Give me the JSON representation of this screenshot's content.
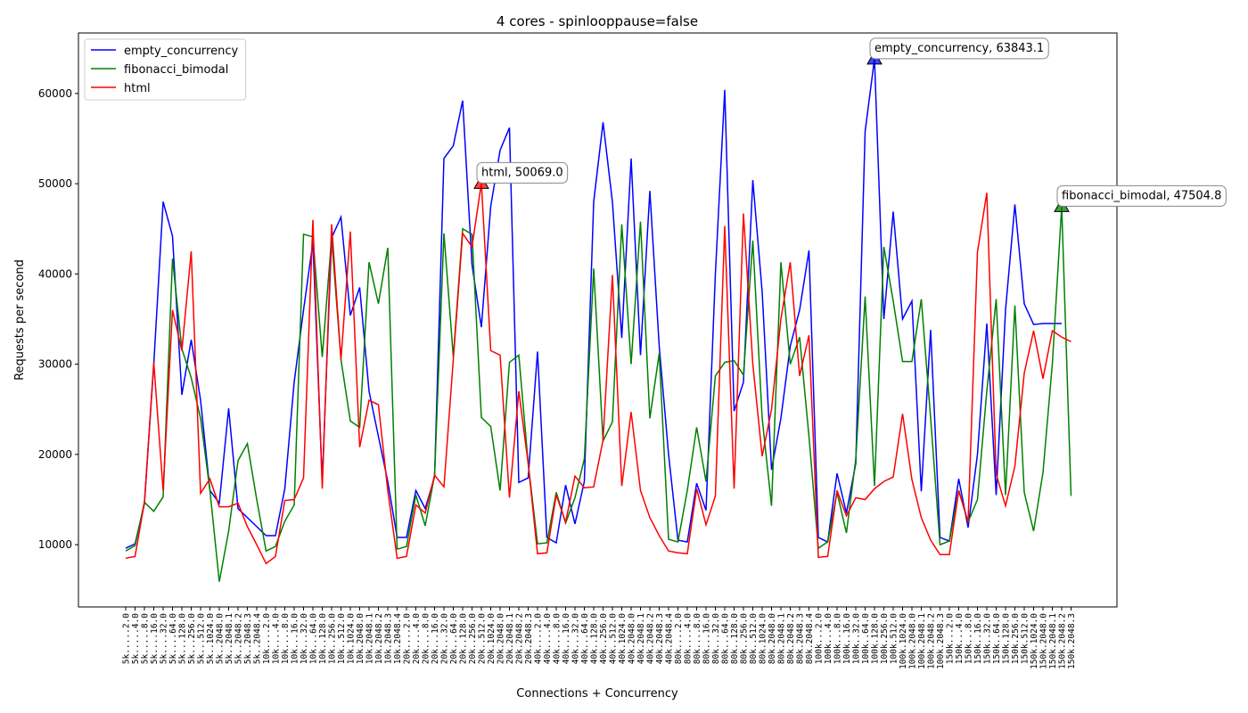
{
  "chart_data": {
    "type": "line",
    "title": "4 cores - spinlooppause=false",
    "x_label": "Connections + Concurrency",
    "y_label": "Requests per second",
    "legend": "upper left",
    "grid": false,
    "ylim": [
      3100,
      66700
    ],
    "yticks": [
      10000,
      20000,
      30000,
      40000,
      50000,
      60000
    ],
    "categories": [
      "5k.....2.0",
      "5k.....4.0",
      "5k.....8.0",
      "5k....16.0",
      "5k....32.0",
      "5k....64.0",
      "5k...128.0",
      "5k...256.0",
      "5k...512.0",
      "5k..1024.0",
      "5k..2048.0",
      "5k..2048.1",
      "5k..2048.2",
      "5k..2048.3",
      "5k..2048.4",
      "10k....2.0",
      "10k....4.0",
      "10k....8.0",
      "10k...16.0",
      "10k...32.0",
      "10k...64.0",
      "10k..128.0",
      "10k..256.0",
      "10k..512.0",
      "10k.1024.0",
      "10k.2048.0",
      "10k.2048.1",
      "10k.2048.2",
      "10k.2048.3",
      "10k.2048.4",
      "20k....2.0",
      "20k....4.0",
      "20k....8.0",
      "20k...16.0",
      "20k...32.0",
      "20k...64.0",
      "20k..128.0",
      "20k..256.0",
      "20k..512.0",
      "20k.1024.0",
      "20k.2048.0",
      "20k.2048.1",
      "20k.2048.2",
      "20k.2048.3",
      "40k....2.0",
      "40k....4.0",
      "40k....8.0",
      "40k...16.0",
      "40k...32.0",
      "40k...64.0",
      "40k..128.0",
      "40k..256.0",
      "40k..512.0",
      "40k.1024.0",
      "40k.2048.0",
      "40k.2048.1",
      "40k.2048.2",
      "40k.2048.3",
      "40k.2048.4",
      "80k....2.0",
      "80k....4.0",
      "80k....8.0",
      "80k...16.0",
      "80k...32.0",
      "80k...64.0",
      "80k..128.0",
      "80k..256.0",
      "80k..512.0",
      "80k.1024.0",
      "80k.2048.0",
      "80k.2048.1",
      "80k.2048.2",
      "80k.2048.3",
      "80k.2048.4",
      "100k...2.0",
      "100k...4.0",
      "100k...8.0",
      "100k..16.0",
      "100k..32.0",
      "100k..64.0",
      "100k.128.0",
      "100k.256.0",
      "100k.512.0",
      "100k.1024.0",
      "100k.2048.0",
      "100k.2048.1",
      "100k.2048.2",
      "100k.2048.3",
      "150k...2.0",
      "150k...4.0",
      "150k...8.0",
      "150k..16.0",
      "150k..32.0",
      "150k..64.0",
      "150k.128.0",
      "150k.256.0",
      "150k.512.0",
      "150k.1024.0",
      "150k.2048.0",
      "150k.2048.1",
      "150k.2048.2",
      "150k.2048.3"
    ],
    "series": [
      {
        "name": "empty_concurrency",
        "color": "#0000ff",
        "annotation": "empty_concurrency, 63843.1",
        "values": [
          9600,
          10100,
          14500,
          30000,
          48000,
          44200,
          26600,
          32700,
          26000,
          16000,
          14600,
          25100,
          14000,
          13000,
          12000,
          11000,
          11000,
          16200,
          28000,
          36000,
          43500,
          17000,
          44000,
          46300,
          35400,
          38500,
          27000,
          22000,
          17000,
          10800,
          10800,
          16000,
          14000,
          17500,
          52800,
          54200,
          59200,
          41000,
          34100,
          47500,
          53700,
          56200,
          16900,
          17400,
          31400,
          10800,
          10200,
          16600,
          12300,
          17000,
          48000,
          56800,
          48000,
          32900,
          52800,
          31000,
          49200,
          32000,
          20000,
          10500,
          10300,
          16800,
          13800,
          40000,
          60400,
          24800,
          28000,
          50400,
          38000,
          18300,
          24000,
          32000,
          36000,
          42600,
          10800,
          10300,
          17900,
          13500,
          19000,
          55800,
          63843.1,
          35000,
          46900,
          35000,
          37000,
          15900,
          33800,
          10800,
          10400,
          17300,
          11900,
          20000,
          34500,
          15500,
          36000,
          47700,
          36700,
          34400,
          34500,
          34500,
          34500,
          null
        ]
      },
      {
        "name": "fibonacci_bimodal",
        "color": "#008000",
        "annotation": "fibonacci_bimodal, 47504.8",
        "values": [
          9300,
          9900,
          14700,
          13700,
          15300,
          41700,
          31700,
          28500,
          24000,
          16000,
          5900,
          11500,
          19300,
          21200,
          15000,
          9300,
          9800,
          12600,
          14400,
          44400,
          44100,
          30800,
          44000,
          30500,
          23700,
          23000,
          41300,
          36700,
          42900,
          9500,
          9800,
          15500,
          12100,
          17700,
          44500,
          30800,
          45000,
          44400,
          24100,
          23100,
          16000,
          30200,
          31000,
          19000,
          10100,
          10200,
          15800,
          12400,
          15200,
          19500,
          40600,
          21500,
          23600,
          45500,
          30000,
          45800,
          24000,
          31200,
          10600,
          10300,
          16000,
          23000,
          17000,
          28700,
          30200,
          30400,
          28800,
          43700,
          24000,
          14300,
          41300,
          30000,
          33000,
          22000,
          9600,
          10300,
          15800,
          11300,
          19500,
          37500,
          16500,
          43000,
          37000,
          30300,
          30300,
          37200,
          24000,
          10000,
          10400,
          16000,
          12500,
          15000,
          27000,
          37200,
          15500,
          36500,
          15800,
          11500,
          18000,
          30000,
          47504.8,
          15400
        ]
      },
      {
        "name": "html",
        "color": "#ff0000",
        "annotation": "html, 50069.0",
        "values": [
          8500,
          8700,
          14700,
          30200,
          16000,
          36000,
          31500,
          42500,
          15700,
          17300,
          14200,
          14200,
          14600,
          12000,
          10000,
          7900,
          8700,
          14900,
          15000,
          17400,
          46000,
          16200,
          45500,
          30500,
          44700,
          20800,
          26000,
          25500,
          16000,
          8500,
          8700,
          14400,
          13500,
          17700,
          16400,
          30500,
          44500,
          43000,
          50069.0,
          31500,
          31000,
          15200,
          27000,
          19000,
          9000,
          9100,
          15500,
          12500,
          17600,
          16300,
          16400,
          21600,
          39900,
          16500,
          24700,
          16000,
          13000,
          11000,
          9300,
          9100,
          9000,
          16200,
          12200,
          15400,
          45300,
          16200,
          46700,
          30000,
          19800,
          25000,
          35000,
          41300,
          28700,
          33200,
          8600,
          8700,
          16000,
          13200,
          15200,
          15000,
          16200,
          17000,
          17500,
          24500,
          17200,
          13000,
          10500,
          8900,
          8900,
          16000,
          12500,
          42400,
          49000,
          17800,
          14300,
          18700,
          29000,
          33700,
          28400,
          33700,
          33000,
          32500
        ]
      }
    ]
  }
}
